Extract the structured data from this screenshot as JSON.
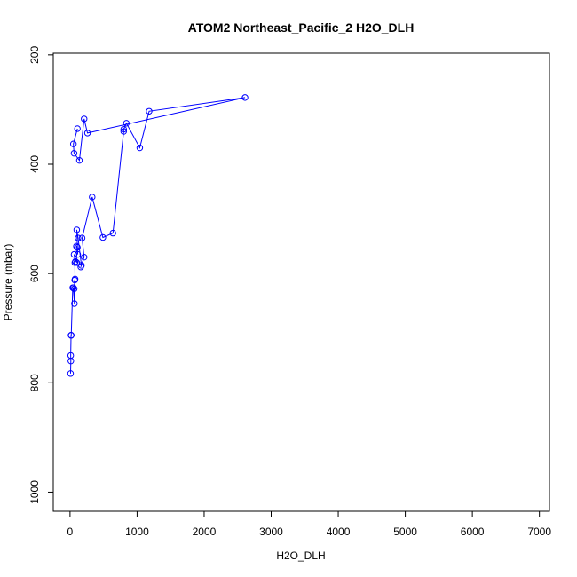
{
  "chart_data": {
    "type": "line",
    "title": "ATOM2 Northeast_Pacific_2 H2O_DLH",
    "xlabel": "H2O_DLH",
    "ylabel": "Pressure (mbar)",
    "xlim": [
      -250,
      7150
    ],
    "ylim": [
      1035,
      197
    ],
    "y_reversed": true,
    "x_ticks": [
      0,
      1000,
      2000,
      3000,
      4000,
      5000,
      6000,
      7000
    ],
    "y_ticks": [
      200,
      400,
      600,
      800,
      1000
    ],
    "grid": false,
    "legend": "none",
    "series_color": "#0000ff",
    "series": [
      {
        "points": [
          [
            8,
            783
          ],
          [
            12,
            760
          ],
          [
            10,
            750
          ],
          [
            15,
            713
          ],
          [
            18,
            713
          ],
          [
            40,
            626
          ],
          [
            50,
            626
          ],
          [
            65,
            655
          ],
          [
            62,
            628
          ],
          [
            70,
            612
          ],
          [
            75,
            610
          ],
          [
            72,
            580
          ],
          [
            80,
            578
          ],
          [
            60,
            565
          ],
          [
            100,
            580
          ],
          [
            95,
            550
          ],
          [
            110,
            552
          ],
          [
            115,
            565
          ],
          [
            100,
            520
          ],
          [
            120,
            535
          ],
          [
            170,
            585
          ],
          [
            160,
            588
          ],
          [
            210,
            570
          ],
          [
            180,
            535
          ],
          [
            330,
            460
          ],
          [
            490,
            534
          ],
          [
            640,
            526
          ],
          [
            800,
            340
          ],
          [
            800,
            336
          ],
          [
            840,
            325
          ],
          [
            1040,
            370
          ],
          [
            1180,
            303
          ],
          [
            2610,
            278
          ],
          [
            260,
            343
          ],
          [
            210,
            317
          ],
          [
            140,
            393
          ],
          [
            60,
            380
          ],
          [
            50,
            363
          ],
          [
            110,
            335
          ]
        ]
      }
    ]
  }
}
